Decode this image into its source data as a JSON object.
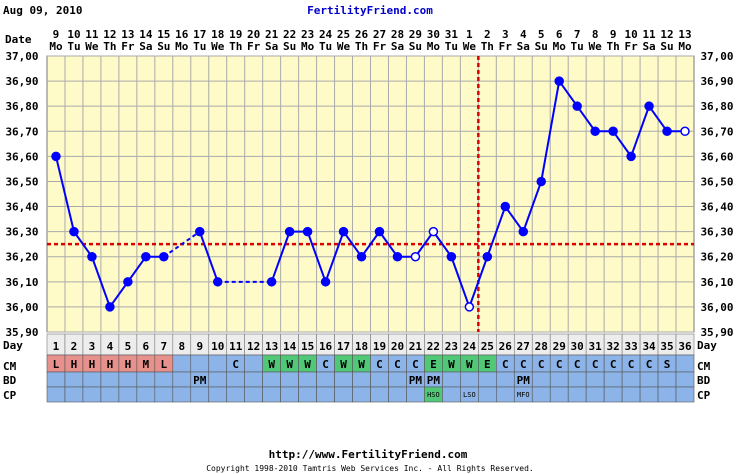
{
  "header": {
    "date": "Aug 09, 2010",
    "site": "FertilityFriend.com"
  },
  "row_labels": {
    "date": "Date",
    "day": "Day",
    "cm": "CM",
    "bd": "BD",
    "cp": "CP"
  },
  "footer": {
    "url": "http://www.FertilityFriend.com",
    "copyright": "Copyright 1998-2010 Tamtris Web Services Inc. - All Rights Reserved."
  },
  "colors": {
    "plot_bg": "#fffbc8",
    "grid": "#aaaaaa",
    "line": "#0000ff",
    "coverline": "#dd0000",
    "ovulation_line": "#dd0000",
    "row_blue": "#8cb4e8",
    "cm_red": "#e8908c",
    "cm_green": "#50c878",
    "day_bg": "#ededed"
  },
  "chart_data": {
    "type": "line",
    "y_range": [
      35.9,
      37.0
    ],
    "y_ticks": [
      "37,00",
      "36,90",
      "36,80",
      "36,70",
      "36,60",
      "36,50",
      "36,40",
      "36,30",
      "36,20",
      "36,10",
      "36,00",
      "35,90"
    ],
    "coverline": 36.25,
    "ovulation_day": 25,
    "dates": [
      "9",
      "10",
      "11",
      "12",
      "13",
      "14",
      "15",
      "16",
      "17",
      "18",
      "19",
      "20",
      "21",
      "22",
      "23",
      "24",
      "25",
      "26",
      "27",
      "28",
      "29",
      "30",
      "31",
      "1",
      "2",
      "3",
      "4",
      "5",
      "6",
      "7",
      "8",
      "9",
      "10",
      "11",
      "12",
      "13"
    ],
    "weekdays": [
      "Mo",
      "Tu",
      "We",
      "Th",
      "Fr",
      "Sa",
      "Su",
      "Mo",
      "Tu",
      "We",
      "Th",
      "Fr",
      "Sa",
      "Su",
      "Mo",
      "Tu",
      "We",
      "Th",
      "Fr",
      "Sa",
      "Su",
      "Mo",
      "Tu",
      "We",
      "Th",
      "Fr",
      "Sa",
      "Su",
      "Mo",
      "Tu",
      "We",
      "Th",
      "Fr",
      "Sa",
      "Su",
      "Mo"
    ],
    "days": [
      "1",
      "2",
      "3",
      "4",
      "5",
      "6",
      "7",
      "8",
      "9",
      "10",
      "11",
      "12",
      "13",
      "14",
      "15",
      "16",
      "17",
      "18",
      "19",
      "20",
      "21",
      "22",
      "23",
      "24",
      "25",
      "26",
      "27",
      "28",
      "29",
      "30",
      "31",
      "32",
      "33",
      "34",
      "35",
      "36"
    ],
    "temps": [
      36.6,
      36.3,
      36.2,
      36.0,
      36.1,
      36.2,
      36.2,
      null,
      36.3,
      36.1,
      null,
      null,
      36.1,
      36.3,
      36.3,
      36.1,
      36.3,
      36.2,
      36.3,
      36.2,
      36.2,
      36.3,
      36.2,
      36.0,
      36.2,
      36.4,
      36.3,
      36.5,
      36.9,
      36.8,
      36.7,
      36.7,
      36.6,
      36.8,
      36.7,
      36.7
    ],
    "open_points": [
      20,
      21,
      23,
      35
    ],
    "dashed_segments": [
      [
        7,
        9
      ],
      [
        10,
        13
      ]
    ],
    "cm": [
      "L",
      "H",
      "H",
      "H",
      "H",
      "M",
      "L",
      "",
      "",
      "",
      "C",
      "",
      "W",
      "W",
      "W",
      "C",
      "W",
      "W",
      "C",
      "C",
      "C",
      "E",
      "W",
      "W",
      "E",
      "C",
      "C",
      "C",
      "C",
      "C",
      "C",
      "C",
      "C",
      "C",
      "S",
      ""
    ],
    "bd": [
      "",
      "",
      "",
      "",
      "",
      "",
      "",
      "",
      "PM",
      "",
      "",
      "",
      "",
      "",
      "",
      "",
      "",
      "",
      "",
      "",
      "PM",
      "PM",
      "",
      "",
      "",
      "",
      "PM",
      "",
      "",
      "",
      "",
      "",
      "",
      "",
      "",
      ""
    ],
    "cp": [
      "",
      "",
      "",
      "",
      "",
      "",
      "",
      "",
      "",
      "",
      "",
      "",
      "",
      "",
      "",
      "",
      "",
      "",
      "",
      "",
      "",
      "HSO",
      "",
      "LSO",
      "",
      "",
      "MFO",
      "",
      "",
      "",
      "",
      "",
      "",
      "",
      "",
      ""
    ]
  }
}
